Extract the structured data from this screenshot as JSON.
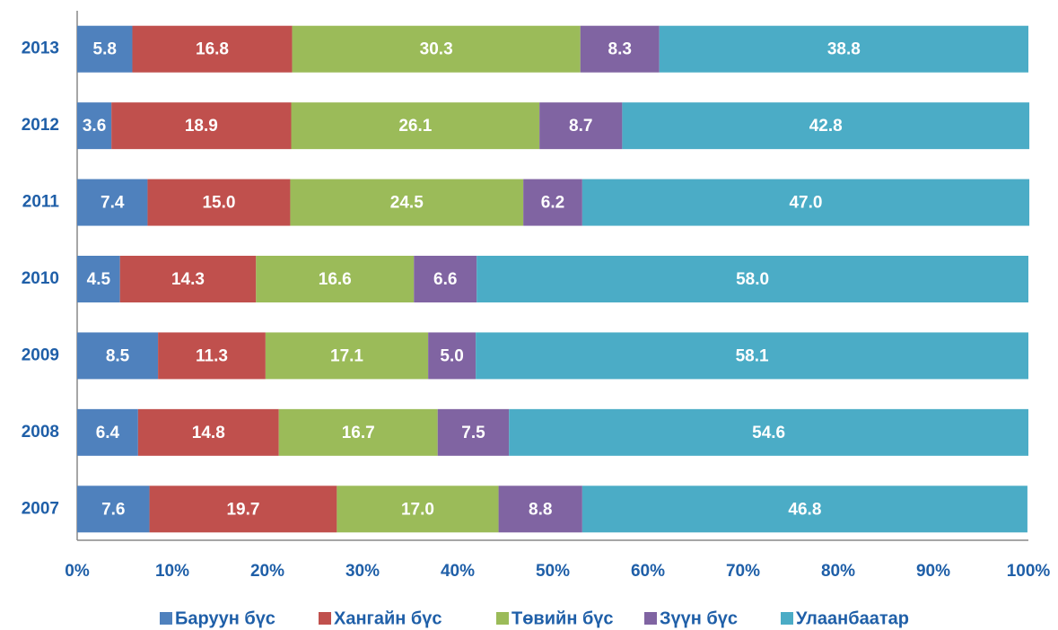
{
  "chart_data": {
    "type": "bar",
    "orientation": "horizontal",
    "stacked": true,
    "categories": [
      "2013",
      "2012",
      "2011",
      "2010",
      "2009",
      "2008",
      "2007"
    ],
    "series": [
      {
        "name": "Баруун бүс",
        "color": "#4f81bd",
        "values": [
          5.8,
          3.6,
          7.4,
          4.5,
          8.5,
          6.4,
          7.6
        ],
        "value_labels": [
          "5.8",
          "3.6",
          "7.4",
          "4.5",
          "8.5",
          "6.4",
          "7.6"
        ]
      },
      {
        "name": "Хангайн бүс",
        "color": "#c0504d",
        "values": [
          16.8,
          18.9,
          15,
          14.3,
          11.3,
          14.8,
          19.7
        ],
        "value_labels": [
          "16.8",
          "18.9",
          "15.0",
          "14.3",
          "11.3",
          "14.8",
          "19.7"
        ]
      },
      {
        "name": "Төвийн бүс",
        "color": "#9bbb59",
        "values": [
          30.3,
          26.1,
          24.5,
          16.6,
          17.1,
          16.7,
          17
        ],
        "value_labels": [
          "30.3",
          "26.1",
          "24.5",
          "16.6",
          "17.1",
          "16.7",
          "17.0"
        ]
      },
      {
        "name": "Зүүн бүс",
        "color": "#8064a2",
        "values": [
          8.3,
          8.7,
          6.2,
          6.6,
          5,
          7.5,
          8.8
        ],
        "value_labels": [
          "8.3",
          "8.7",
          "6.2",
          "6.6",
          "5.0",
          "7.5",
          "8.8"
        ]
      },
      {
        "name": "Улаанбаатар",
        "color": "#4bacc6",
        "values": [
          38.8,
          42.8,
          47,
          58,
          58.1,
          54.6,
          46.8
        ],
        "value_labels": [
          "38.8",
          "42.8",
          "47.0",
          "58.0",
          "58.1",
          "54.6",
          "46.8"
        ]
      }
    ],
    "xlim": [
      0,
      100
    ],
    "xticks": [
      {
        "value": 0,
        "label": "0%"
      },
      {
        "value": 10,
        "label": "10%"
      },
      {
        "value": 20,
        "label": "20%"
      },
      {
        "value": 30,
        "label": "30%"
      },
      {
        "value": 40,
        "label": "40%"
      },
      {
        "value": 50,
        "label": "50%"
      },
      {
        "value": 60,
        "label": "60%"
      },
      {
        "value": 70,
        "label": "70%"
      },
      {
        "value": 80,
        "label": "80%"
      },
      {
        "value": 90,
        "label": "90%"
      },
      {
        "value": 100,
        "label": "100%"
      }
    ],
    "legend": "bottom"
  }
}
